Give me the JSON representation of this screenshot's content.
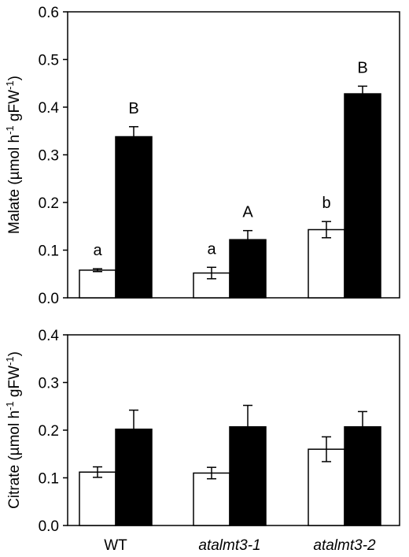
{
  "chart_data": [
    {
      "type": "bar",
      "categories": [
        "WT",
        "atalmt3-1",
        "atalmt3-2"
      ],
      "category_italic": [
        false,
        true,
        true
      ],
      "ylabel_parts": [
        "Malate (µmol h",
        "-1",
        " gFW",
        "-1",
        ")"
      ],
      "ylim": [
        0,
        0.6
      ],
      "yticks": [
        "0.0",
        "0.1",
        "0.2",
        "0.3",
        "0.4",
        "0.5",
        "0.6"
      ],
      "series": [
        {
          "color": "#ffffff",
          "values": [
            0.058,
            0.052,
            0.143
          ],
          "errors": [
            0.003,
            0.012,
            0.017
          ],
          "letters": [
            "a",
            "a",
            "b"
          ]
        },
        {
          "color": "#000000",
          "values": [
            0.338,
            0.122,
            0.428
          ],
          "errors": [
            0.021,
            0.019,
            0.016
          ],
          "letters": [
            "B",
            "A",
            "B"
          ]
        }
      ]
    },
    {
      "type": "bar",
      "categories": [
        "WT",
        "atalmt3-1",
        "atalmt3-2"
      ],
      "category_italic": [
        false,
        true,
        true
      ],
      "ylabel_parts": [
        "Citrate (µmol h",
        "-1",
        " gFW",
        "-1",
        ")"
      ],
      "ylim": [
        0,
        0.4
      ],
      "yticks": [
        "0.0",
        "0.1",
        "0.2",
        "0.3",
        "0.4"
      ],
      "series": [
        {
          "color": "#ffffff",
          "values": [
            0.112,
            0.11,
            0.16
          ],
          "errors": [
            0.011,
            0.012,
            0.026
          ],
          "letters": []
        },
        {
          "color": "#000000",
          "values": [
            0.202,
            0.207,
            0.207
          ],
          "errors": [
            0.04,
            0.045,
            0.032
          ],
          "letters": []
        }
      ]
    }
  ]
}
